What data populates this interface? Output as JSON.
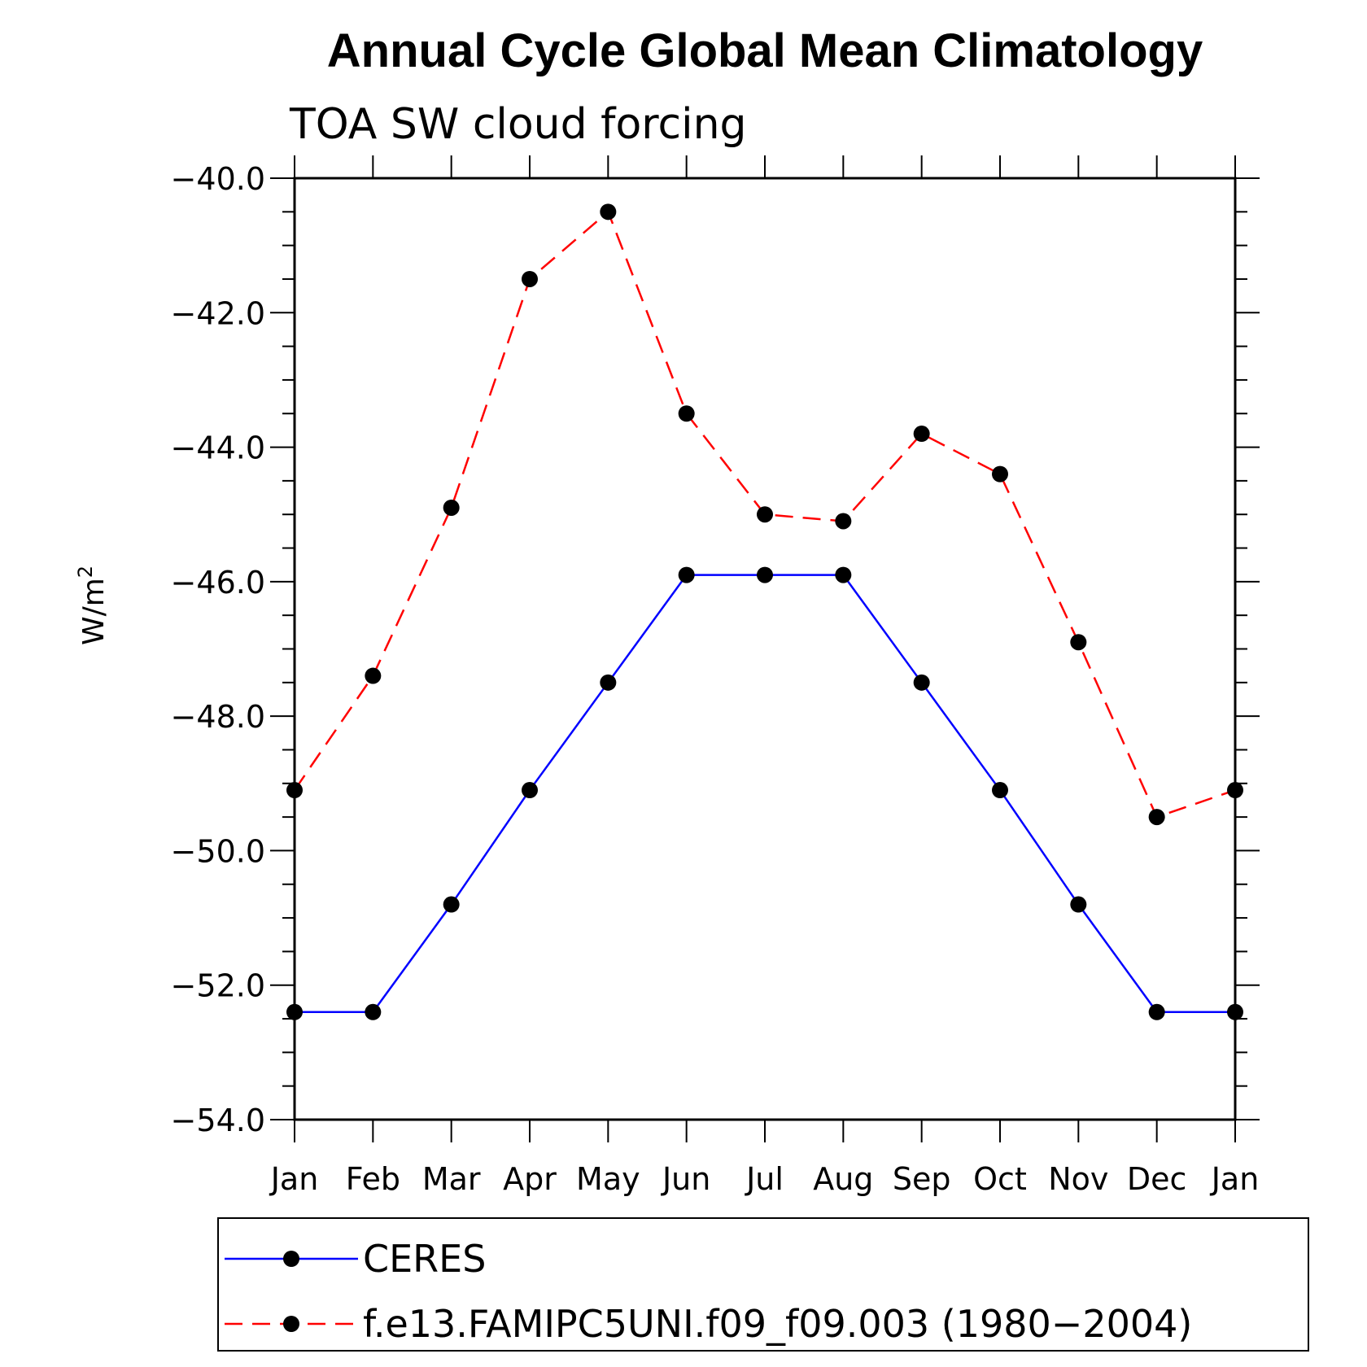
{
  "chart_data": {
    "type": "line",
    "title": "Annual Cycle Global Mean Climatology",
    "subtitle": "TOA SW cloud forcing",
    "ylabel": "W/m",
    "ylabel_sup": "2",
    "ylim": [
      -54.0,
      -40.0
    ],
    "yticks": [
      "-40.0",
      "-42.0",
      "-44.0",
      "-46.0",
      "-48.0",
      "-50.0",
      "-52.0",
      "-54.0"
    ],
    "categories": [
      "Jan",
      "Feb",
      "Mar",
      "Apr",
      "May",
      "Jun",
      "Jul",
      "Aug",
      "Sep",
      "Oct",
      "Nov",
      "Dec",
      "Jan"
    ],
    "series": [
      {
        "name": "CERES",
        "color": "#0000ff",
        "dash": "solid",
        "values": [
          -52.4,
          -52.4,
          -50.8,
          -49.1,
          -47.5,
          -45.9,
          -45.9,
          -45.9,
          -47.5,
          -49.1,
          -50.8,
          -52.4,
          -52.4
        ]
      },
      {
        "name": "f.e13.FAMIPC5UNI.f09_f09.003 (1980-2004)",
        "color": "#ff0000",
        "dash": "dashed",
        "values": [
          -49.1,
          -47.4,
          -44.9,
          -41.5,
          -40.5,
          -43.5,
          -45.0,
          -45.1,
          -43.8,
          -44.4,
          -46.9,
          -49.5,
          -49.1
        ]
      }
    ],
    "grid": false,
    "legend_position": "bottom"
  }
}
